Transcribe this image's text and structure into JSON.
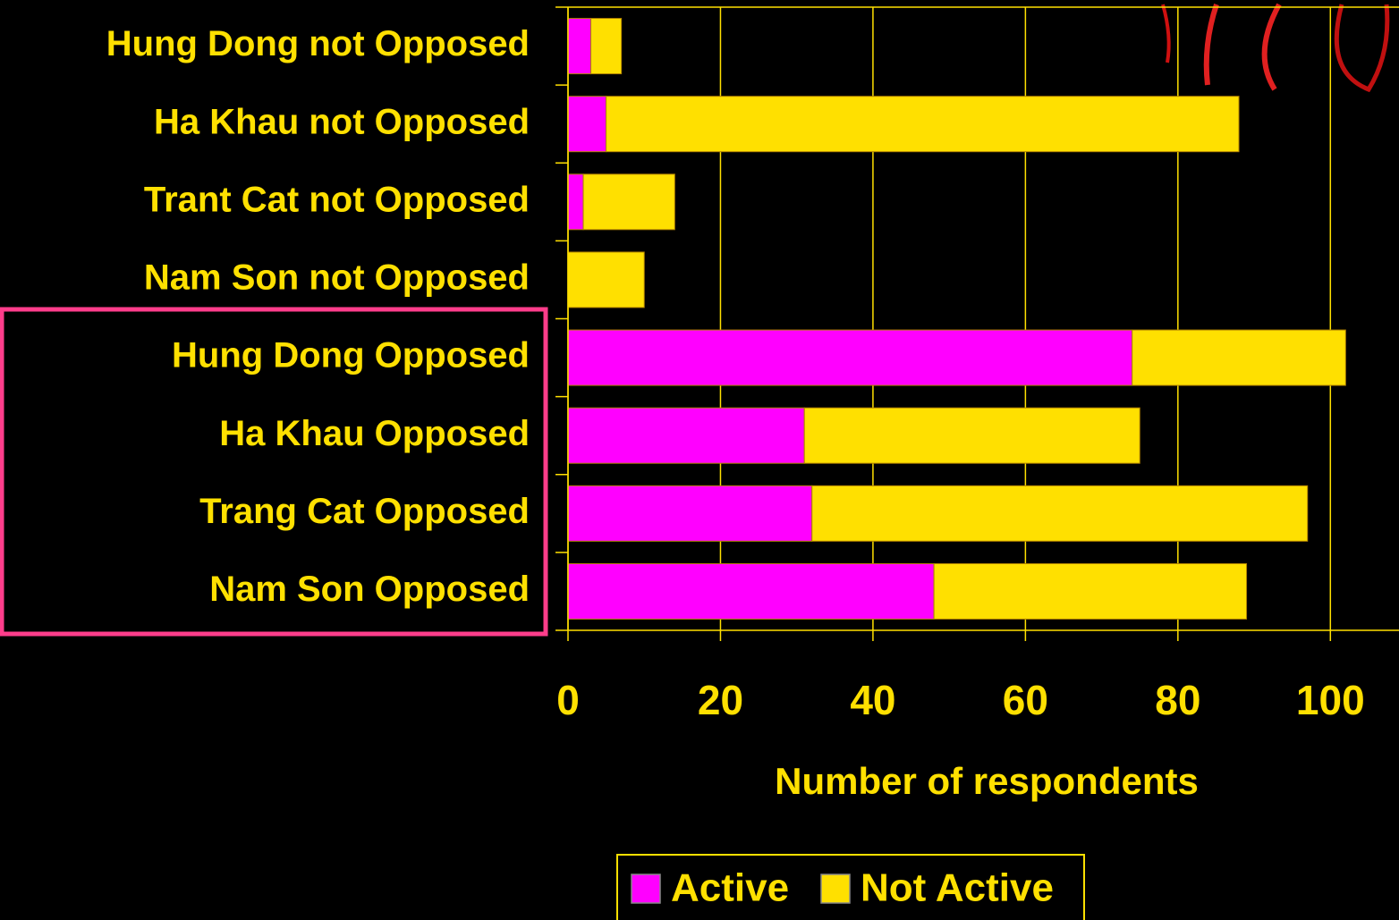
{
  "chart_data": {
    "type": "stacked-barh",
    "categories": [
      "Hung Dong not Opposed",
      "Ha Khau not Opposed",
      "Trant Cat not Opposed",
      "Nam Son not Opposed",
      "Hung Dong Opposed",
      "Ha Khau Opposed",
      "Trang Cat Opposed",
      "Nam Son Opposed"
    ],
    "series": [
      {
        "name": "Active",
        "color": "#ff00ff",
        "values": [
          3,
          5,
          2,
          0,
          74,
          31,
          32,
          48
        ]
      },
      {
        "name": "Not Active",
        "color": "#ffe000",
        "values": [
          4,
          83,
          12,
          10,
          28,
          44,
          65,
          41
        ]
      }
    ],
    "xlabel": "Number of respondents",
    "xlim": [
      0,
      109
    ],
    "xticks": [
      0,
      20,
      40,
      60,
      80,
      100
    ],
    "grid": true
  }
}
